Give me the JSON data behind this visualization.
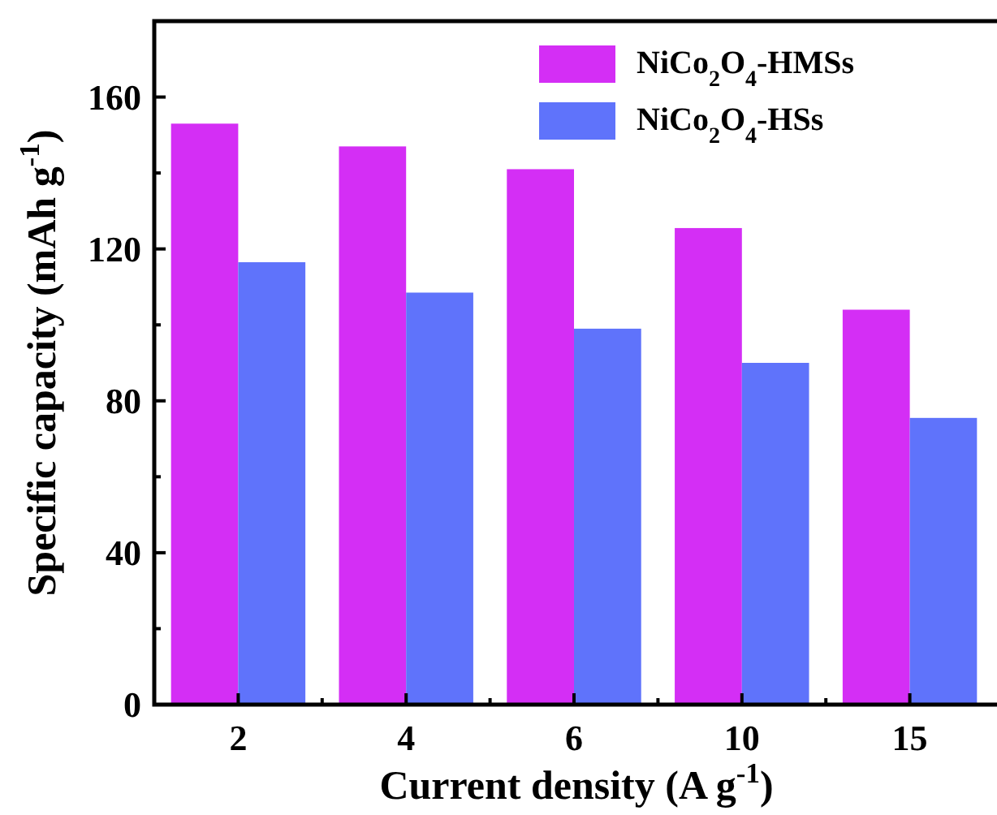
{
  "chart_data": {
    "type": "bar",
    "xlabel": "Current density (A g$^{-1}$)",
    "ylabel": "Specific capacity (mAh g$^{-1}$)",
    "categories": [
      "2",
      "4",
      "6",
      "10",
      "15"
    ],
    "series": [
      {
        "name": "NiCo$_{2}$O$_{4}$-HMSs",
        "color": "#d42ef5",
        "values": [
          153,
          147,
          141,
          125.5,
          104
        ]
      },
      {
        "name": "NiCo$_{2}$O$_{4}$-HSs",
        "color": "#5f73fb",
        "values": [
          116.5,
          108.5,
          99,
          90,
          75.5
        ]
      }
    ],
    "ylim": [
      0,
      180
    ],
    "yticks": [
      0,
      {
        "value": 20,
        "label": null
      },
      40,
      {
        "value": 60,
        "label": null
      },
      80,
      {
        "value": 100,
        "label": null
      },
      120,
      {
        "value": 140,
        "label": null
      },
      160
    ],
    "legend": "top right",
    "grid": false
  }
}
